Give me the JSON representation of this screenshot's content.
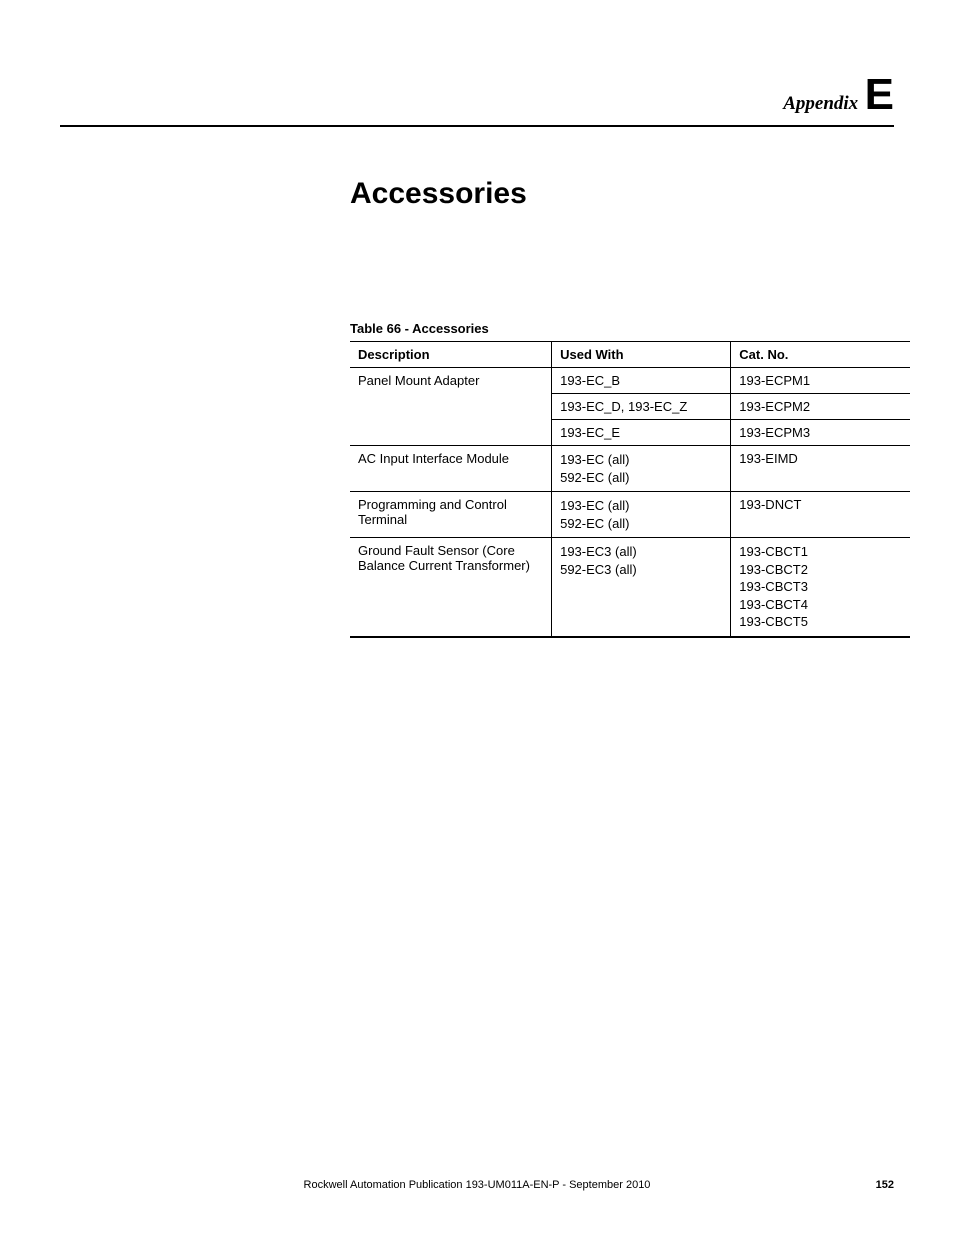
{
  "header": {
    "appendix_label": "Appendix",
    "appendix_letter": "E"
  },
  "chapter_title": "Accessories",
  "table": {
    "caption": "Table 66 - Accessories",
    "columns": [
      "Description",
      "Used With",
      "Cat. No."
    ],
    "rows": [
      {
        "desc": "Panel Mount Adapter",
        "used": "193-EC_B",
        "cat": "193-ECPM1",
        "span_start": true
      },
      {
        "desc": "",
        "used": "193-EC_D, 193-EC_Z",
        "cat": "193-ECPM2",
        "span_mid": true
      },
      {
        "desc": "",
        "used": "193-EC_E",
        "cat": "193-ECPM3",
        "span_end": true
      },
      {
        "desc": "AC Input Interface Module",
        "used": "193-EC (all)\n592-EC (all)",
        "cat": "193-EIMD"
      },
      {
        "desc": "Programming and Control Terminal",
        "used": "193-EC (all)\n592-EC (all)",
        "cat": "193-DNCT"
      },
      {
        "desc": "Ground Fault Sensor (Core Balance Current Transformer)",
        "used": "193-EC3 (all)\n592-EC3 (all)",
        "cat": "193-CBCT1\n193-CBCT2\n193-CBCT3\n193-CBCT4\n193-CBCT5"
      }
    ]
  },
  "footer": {
    "publication": "Rockwell Automation Publication 193-UM011A-EN-P - September 2010",
    "page_number": "152"
  }
}
